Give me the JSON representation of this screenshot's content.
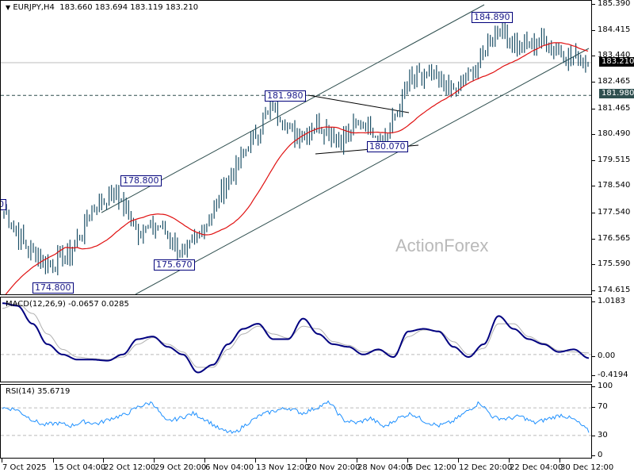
{
  "header": {
    "symbol_title": "EURJPY,H4",
    "ohlc": "183.660 183.694 183.119 183.210"
  },
  "watermark": "ActionForex",
  "colors": {
    "bars": "#1b4f66",
    "ma": "#e01010",
    "channel": "#2f4f4f",
    "macd_main": "#000080",
    "macd_signal": "#b0b0b0",
    "rsi": "#1e90ff",
    "current_price_bg": "#000000",
    "level_bg": "#2f4f4f"
  },
  "price_axis": {
    "ticks": [
      "185.390",
      "184.415",
      "183.440",
      "182.465",
      "181.465",
      "180.490",
      "179.515",
      "178.540",
      "177.540",
      "176.565",
      "175.590",
      "174.615"
    ],
    "current_price": "183.210",
    "level_price": "181.980"
  },
  "macd_axis": {
    "ticks": [
      "1.0183",
      "0.00",
      "-0.4194"
    ]
  },
  "rsi_axis": {
    "ticks": [
      "100",
      "70",
      "30",
      "0"
    ]
  },
  "indicators": {
    "macd_label": "MACD(12,26,9) -0.0657 0.0285",
    "rsi_label": "RSI(14) 35.6719"
  },
  "time_axis": {
    "labels": [
      "7 Oct 2025",
      "15 Oct 04:00",
      "22 Oct 12:00",
      "29 Oct 20:00",
      "6 Nov 04:00",
      "13 Nov 12:00",
      "20 Nov 20:00",
      "28 Nov 04:00",
      "5 Dec 12:00",
      "12 Dec 20:00",
      "22 Dec 04:00",
      "30 Dec 12:00"
    ]
  },
  "annotations": {
    "left_edge": "0",
    "low_1": "174.800",
    "high_1": "178.800",
    "low_2": "175.670",
    "high_2": "181.980",
    "low_3": "180.070",
    "high_3": "184.890"
  },
  "chart_data": [
    {
      "type": "bar",
      "title": "EURJPY,H4",
      "subtitle": "O 183.660 H 183.694 L 183.119 C 183.210",
      "xlabel": "",
      "ylabel": "",
      "ylim": [
        174.4,
        185.5
      ],
      "x": [
        "7 Oct 2025",
        "15 Oct 04:00",
        "22 Oct 12:00",
        "29 Oct 20:00",
        "6 Nov 04:00",
        "13 Nov 12:00",
        "20 Nov 20:00",
        "28 Nov 04:00",
        "5 Dec 12:00",
        "12 Dec 20:00",
        "22 Dec 04:00",
        "30 Dec 12:00"
      ],
      "close_path": [
        177.6,
        176.3,
        175.6,
        176.1,
        177.8,
        178.3,
        176.9,
        177.1,
        175.9,
        177.2,
        178.8,
        180.3,
        181.6,
        180.4,
        180.9,
        180.3,
        181.0,
        180.3,
        182.5,
        182.7,
        182.1,
        183.0,
        184.6,
        183.8,
        184.0,
        183.5,
        183.2
      ],
      "moving_average": "red MA line rising from ~174.6 to ~183.6",
      "levels": [
        {
          "name": "current",
          "value": 183.21
        },
        {
          "name": "horizontal",
          "value": 181.98,
          "style": "dashed"
        }
      ],
      "price_labels": [
        174.8,
        178.8,
        175.67,
        181.98,
        180.07,
        184.89
      ],
      "channel": "rising parallel channel from Oct lows to Dec highs; triangle between 181.980 and 180.070",
      "grid": false
    },
    {
      "type": "line",
      "title": "MACD(12,26,9) -0.0657 0.0285",
      "ylim": [
        -0.4194,
        1.0183
      ],
      "series": [
        {
          "name": "MACD",
          "values": [
            1.0,
            0.95,
            0.6,
            0.2,
            0.0,
            -0.1,
            -0.1,
            -0.12,
            0.0,
            0.3,
            0.35,
            0.15,
            0.0,
            -0.35,
            -0.2,
            0.2,
            0.5,
            0.6,
            0.3,
            0.3,
            0.7,
            0.4,
            0.2,
            0.15,
            0.0,
            0.1,
            -0.05,
            0.45,
            0.5,
            0.45,
            0.15,
            -0.05,
            0.2,
            0.75,
            0.5,
            0.3,
            0.2,
            0.05,
            0.1,
            -0.07
          ]
        },
        {
          "name": "Signal",
          "values": [
            0.9,
            1.0,
            0.8,
            0.4,
            0.1,
            -0.05,
            -0.08,
            -0.1,
            -0.05,
            0.2,
            0.33,
            0.2,
            0.05,
            -0.25,
            -0.25,
            0.1,
            0.4,
            0.55,
            0.4,
            0.32,
            0.55,
            0.5,
            0.25,
            0.18,
            0.05,
            0.08,
            0.0,
            0.35,
            0.48,
            0.46,
            0.25,
            0.0,
            0.12,
            0.6,
            0.6,
            0.35,
            0.22,
            0.08,
            0.05,
            0.03
          ]
        }
      ],
      "reference_lines": [
        0.0
      ]
    },
    {
      "type": "line",
      "title": "RSI(14) 35.6719",
      "ylim": [
        0,
        100
      ],
      "series": [
        {
          "name": "RSI",
          "values": [
            70,
            68,
            55,
            45,
            48,
            44,
            50,
            47,
            55,
            60,
            72,
            78,
            50,
            55,
            62,
            52,
            38,
            33,
            48,
            60,
            66,
            70,
            62,
            70,
            78,
            52,
            48,
            55,
            42,
            55,
            62,
            50,
            44,
            50,
            64,
            78,
            56,
            54,
            58,
            48,
            54,
            60,
            52,
            36
          ]
        }
      ],
      "reference_lines": [
        70,
        30
      ]
    }
  ]
}
